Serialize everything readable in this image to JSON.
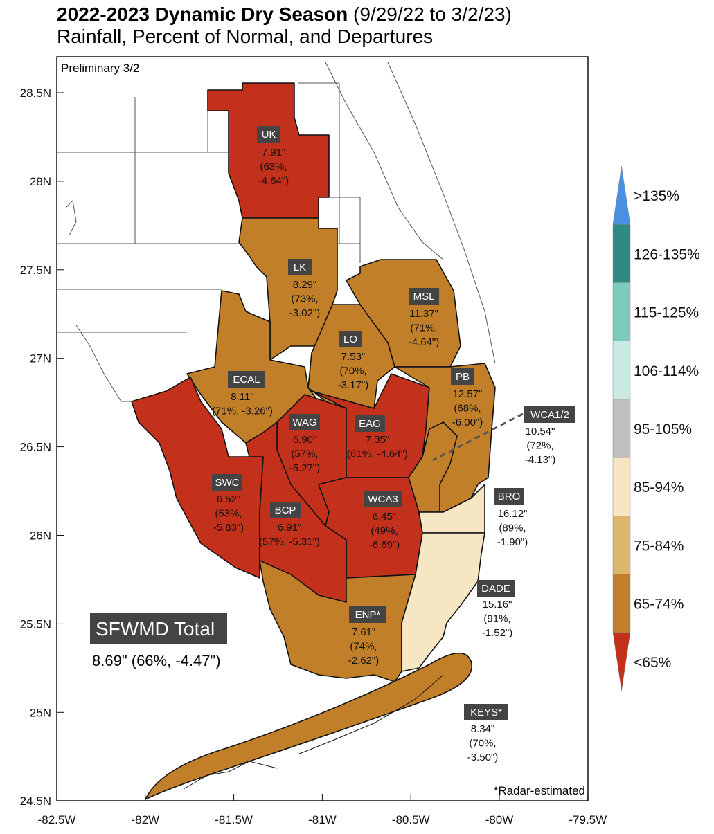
{
  "header": {
    "title_bold": "2022-2023 Dynamic Dry Season",
    "title_dates": "(9/29/22 to 3/2/23)",
    "subtitle": "Rainfall, Percent of Normal, and Departures"
  },
  "notes": {
    "preliminary": "Preliminary 3/2",
    "footnote": "*Radar-estimated"
  },
  "axes": {
    "y_labels": [
      "28.5N",
      "28N",
      "27.5N",
      "27N",
      "26.5N",
      "26N",
      "25.5N",
      "25N",
      "24.5N"
    ],
    "x_labels": [
      "-82.5W",
      "-82W",
      "-81.5W",
      "-81W",
      "-80.5W",
      "-80W",
      "-79.5W"
    ]
  },
  "regions": [
    {
      "name": "UK",
      "lines": [
        "7.91\"",
        "(63%,",
        "-4.64\")"
      ]
    },
    {
      "name": "LK",
      "lines": [
        "8.29\"",
        "(73%,",
        "-3.02\")"
      ]
    },
    {
      "name": "MSL",
      "lines": [
        "11.37\"",
        "(71%,",
        "-4.64\")"
      ]
    },
    {
      "name": "LO",
      "lines": [
        "7.53\"",
        "(70%,",
        "-3.17\")"
      ]
    },
    {
      "name": "ECAL",
      "lines": [
        "8.11\"",
        "(71%, -3.26\")"
      ]
    },
    {
      "name": "WAG",
      "lines": [
        "6.90\"",
        "(57%,",
        "-5.27\")"
      ]
    },
    {
      "name": "EAG",
      "lines": [
        "7.35\"",
        "(61%, -4.64\")"
      ]
    },
    {
      "name": "PB",
      "lines": [
        "12.57\"",
        "(68%,",
        "-6.00\")"
      ]
    },
    {
      "name": "WCA1/2",
      "lines": [
        "10.54\"",
        "(72%,",
        "-4.13\")"
      ]
    },
    {
      "name": "SWC",
      "lines": [
        "6.52\"",
        "(53%,",
        "-5.83\")"
      ]
    },
    {
      "name": "BCP",
      "lines": [
        "6.91\"",
        "(57%, -5.31\")"
      ]
    },
    {
      "name": "WCA3",
      "lines": [
        "6.45\"",
        "(49%,",
        "-6.69\")"
      ]
    },
    {
      "name": "BRO",
      "lines": [
        "16.12\"",
        "(89%,",
        "-1.90\")"
      ]
    },
    {
      "name": "DADE",
      "lines": [
        "15.16\"",
        "(91%,",
        "-1.52\")"
      ]
    },
    {
      "name": "ENP*",
      "lines": [
        "7.61\"",
        "(74%,",
        "-2.62\")"
      ]
    },
    {
      "name": "KEYS*",
      "lines": [
        "8.34\"",
        "(70%,",
        "-3.50\")"
      ]
    }
  ],
  "total": {
    "label": "SFWMD Total",
    "value": "8.69\" (66%, -4.47\")"
  },
  "legend": [
    {
      "label": ">135%",
      "color": "#4a90e2"
    },
    {
      "label": "126-135%",
      "color": "#2e8b84"
    },
    {
      "label": "115-125%",
      "color": "#7ccabb"
    },
    {
      "label": "106-114%",
      "color": "#c9e8e2"
    },
    {
      "label": "95-105%",
      "color": "#c0c0c0"
    },
    {
      "label": "85-94%",
      "color": "#f6e6c4"
    },
    {
      "label": "75-84%",
      "color": "#dcb56c"
    },
    {
      "label": "65-74%",
      "color": "#c17f2a"
    },
    {
      "label": "<65%",
      "color": "#c3311c"
    }
  ]
}
